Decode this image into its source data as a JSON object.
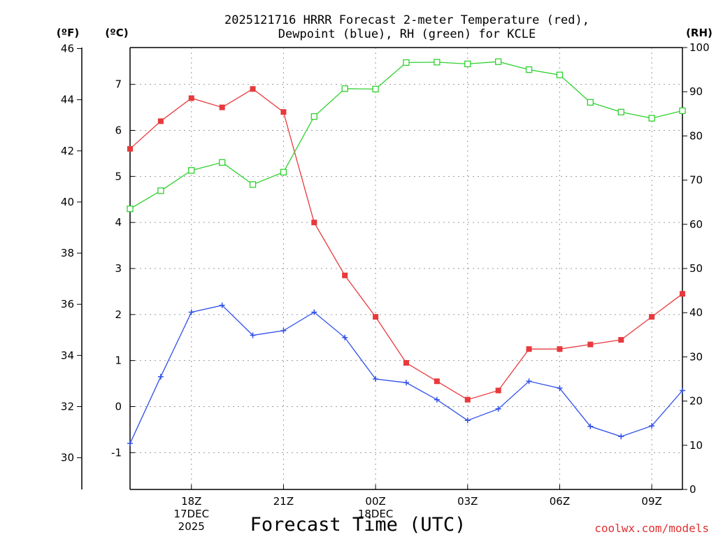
{
  "chart_data": {
    "type": "line",
    "title_lines": [
      "2025121716 HRRR Forecast 2-meter Temperature (red),",
      "Dewpoint (blue), RH (green) for KCLE"
    ],
    "xlabel": "Forecast Time (UTC)",
    "credit": "coolwx.com/models",
    "units": {
      "fahrenheit": "(ºF)",
      "celsius": "(ºC)",
      "rh": "(RH)"
    },
    "x_hours": [
      16,
      17,
      18,
      19,
      20,
      21,
      22,
      23,
      24,
      25,
      26,
      27,
      28,
      29,
      30,
      31,
      32,
      33,
      34
    ],
    "xlim": [
      16,
      34
    ],
    "x_ticks": [
      {
        "hour": 18,
        "lines": [
          "18Z",
          "17DEC",
          "2025"
        ]
      },
      {
        "hour": 21,
        "lines": [
          "21Z"
        ]
      },
      {
        "hour": 24,
        "lines": [
          "00Z",
          "18DEC"
        ]
      },
      {
        "hour": 27,
        "lines": [
          "03Z"
        ]
      },
      {
        "hour": 30,
        "lines": [
          "06Z"
        ]
      },
      {
        "hour": 33,
        "lines": [
          "09Z"
        ]
      }
    ],
    "celsius_axis": {
      "range": [
        -1.8,
        7.8
      ],
      "ticks": [
        "-1",
        "0",
        "1",
        "2",
        "3",
        "4",
        "5",
        "6",
        "7"
      ]
    },
    "fahrenheit_axis": {
      "range": [
        28.76,
        46.04
      ],
      "ticks": [
        "30",
        "32",
        "34",
        "36",
        "38",
        "40",
        "42",
        "44",
        "46"
      ]
    },
    "rh_axis": {
      "range": [
        0,
        100
      ],
      "ticks": [
        "0",
        "10",
        "20",
        "30",
        "40",
        "50",
        "60",
        "70",
        "80",
        "90",
        "100"
      ]
    },
    "series": [
      {
        "name": "Temperature",
        "axis": "celsius",
        "color": "#e8393c",
        "marker": "filled-square",
        "values": [
          5.6,
          6.2,
          6.7,
          6.5,
          6.9,
          6.4,
          4.0,
          2.85,
          1.95,
          0.95,
          0.55,
          0.15,
          0.35,
          1.25,
          1.25,
          1.35,
          1.45,
          1.95,
          2.45
        ]
      },
      {
        "name": "Dewpoint",
        "axis": "celsius",
        "color": "#2f4fe8",
        "marker": "plus",
        "values": [
          -0.8,
          0.65,
          2.05,
          2.2,
          1.55,
          1.65,
          2.05,
          1.5,
          0.6,
          0.52,
          0.15,
          -0.3,
          -0.05,
          0.55,
          0.4,
          -0.43,
          -0.65,
          -0.42,
          0.35
        ]
      },
      {
        "name": "RH",
        "axis": "rh",
        "color": "#2fd12f",
        "marker": "open-square",
        "values": [
          63.5,
          67.6,
          72.2,
          74.0,
          69.0,
          71.8,
          84.4,
          90.7,
          90.6,
          96.6,
          96.7,
          96.3,
          96.8,
          95.0,
          93.8,
          87.6,
          85.4,
          84.0,
          85.7
        ]
      }
    ]
  }
}
